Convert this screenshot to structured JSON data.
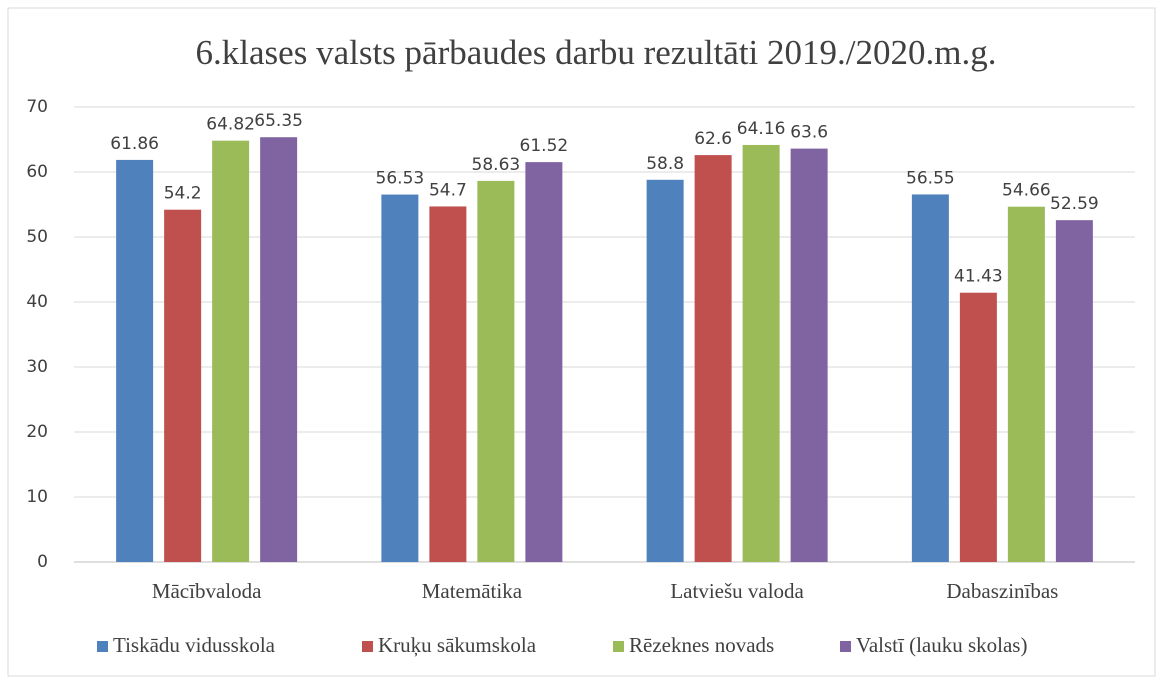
{
  "chart_data": {
    "type": "bar",
    "title": "6.klases valsts pārbaudes darbu rezultāti 2019./2020.m.g.",
    "categories": [
      "Mācībvaloda",
      "Matemātika",
      "Latviešu valoda",
      "Dabaszinības"
    ],
    "series": [
      {
        "name": "Tiskādu vidusskola",
        "color": "#4f81bd",
        "values": [
          61.86,
          56.53,
          58.8,
          56.55
        ]
      },
      {
        "name": "Kruķu sākumskola",
        "color": "#c0504d",
        "values": [
          54.2,
          54.7,
          62.6,
          41.43
        ]
      },
      {
        "name": "Rēzeknes novads",
        "color": "#9bbb59",
        "values": [
          64.82,
          58.63,
          64.16,
          54.66
        ]
      },
      {
        "name": "Valstī (lauku skolas)",
        "color": "#8064a2",
        "values": [
          65.35,
          61.52,
          63.6,
          52.59
        ]
      }
    ],
    "ylim": [
      0,
      70
    ],
    "yticks": [
      0,
      10,
      20,
      30,
      40,
      50,
      60,
      70
    ],
    "grid": true,
    "legend": "bottom"
  }
}
